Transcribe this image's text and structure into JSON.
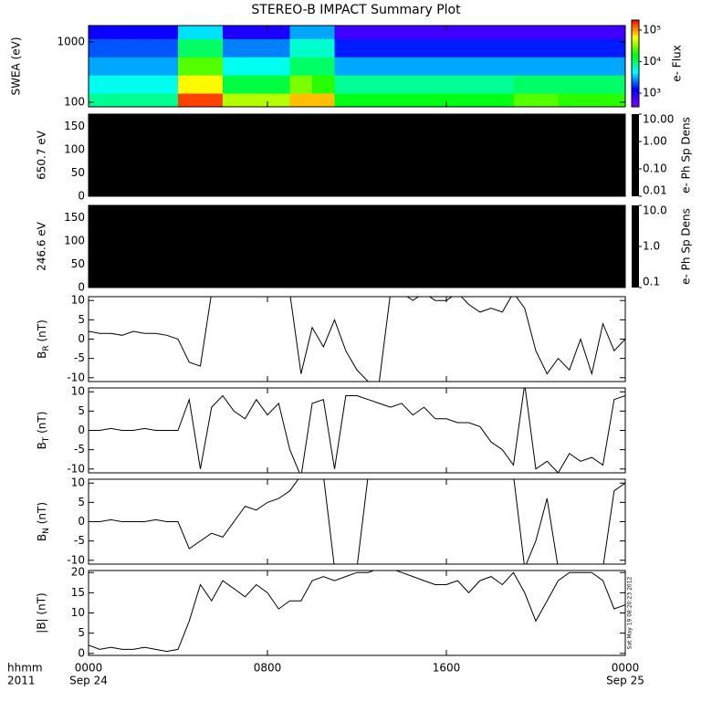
{
  "title": "STEREO-B IMPACT Summary Plot",
  "timestamp": "Sat May 19 08:20:23 2012",
  "x_axis": {
    "xlim": [
      0,
      24
    ],
    "xticks": [
      {
        "value": 0,
        "label": "0000"
      },
      {
        "value": 8,
        "label": "0800"
      },
      {
        "value": 16,
        "label": "1600"
      },
      {
        "value": 24,
        "label": "0000"
      }
    ],
    "date_labels": [
      "Sep 24",
      "Sep 25"
    ],
    "corner_labels": [
      "hhmm",
      "2011"
    ]
  },
  "chart_data": [
    {
      "type": "heatmap",
      "ylabel": "SWEA (eV)",
      "log": true,
      "ylim": [
        84,
        1870
      ],
      "yticks": [
        100,
        1000
      ],
      "x": [
        0,
        1,
        2,
        3,
        4,
        5,
        6,
        7,
        8,
        9,
        10,
        11,
        12,
        13,
        14,
        15,
        16,
        17,
        18,
        19,
        20,
        21,
        22,
        23
      ],
      "y": [
        100,
        200,
        400,
        800,
        1600
      ],
      "z": [
        [
          8000,
          8000,
          8000,
          8000,
          150000,
          150000,
          40000,
          40000,
          40000,
          80000,
          80000,
          15000,
          15000,
          15000,
          15000,
          15000,
          15000,
          15000,
          15000,
          25000,
          25000,
          20000,
          20000,
          20000
        ],
        [
          5000,
          5000,
          5000,
          5000,
          60000,
          60000,
          12000,
          12000,
          12000,
          30000,
          20000,
          8000,
          8000,
          8000,
          8000,
          8000,
          8000,
          8000,
          8000,
          10000,
          10000,
          10000,
          10000,
          10000
        ],
        [
          3000,
          3000,
          3000,
          3000,
          25000,
          25000,
          5000,
          5000,
          5000,
          10000,
          10000,
          3000,
          3000,
          3000,
          3000,
          3000,
          3000,
          3000,
          3000,
          3000,
          3000,
          3000,
          3000,
          3000
        ],
        [
          2000,
          2000,
          2000,
          2000,
          10000,
          10000,
          2500,
          2500,
          2500,
          6000,
          6000,
          1500,
          1500,
          1500,
          1500,
          1500,
          1500,
          1500,
          1500,
          1500,
          1500,
          1500,
          1500,
          1500
        ],
        [
          1200,
          1200,
          1200,
          1200,
          4000,
          4000,
          1000,
          1000,
          1000,
          3000,
          3000,
          700,
          700,
          700,
          700,
          700,
          700,
          700,
          700,
          700,
          700,
          700,
          700,
          700
        ]
      ],
      "colorbar": {
        "label": "e- Flux",
        "log": true,
        "clim": [
          370,
          207000
        ],
        "ticks": [
          {
            "value": 1000,
            "label": "10³"
          },
          {
            "value": 10000,
            "label": "10⁴"
          },
          {
            "value": 100000,
            "label": "10⁵"
          }
        ],
        "colormap": [
          "#8000ff",
          "#0000ff",
          "#00ffff",
          "#00ff00",
          "#ffff00",
          "#ff0000"
        ]
      }
    },
    {
      "type": "heatmap",
      "ylabel": "650.7 eV",
      "ylim": [
        0,
        176
      ],
      "yticks": [
        0,
        50,
        100,
        150
      ],
      "color": "#000000",
      "colorbar": {
        "label": "e- Ph Sp Dens",
        "log": true,
        "clim": [
          0.01,
          10
        ],
        "color": "#000000",
        "ticks": [
          {
            "value": 10,
            "label": "10.00"
          },
          {
            "value": 1,
            "label": "1.00"
          },
          {
            "value": 0.1,
            "label": "0.10"
          },
          {
            "value": 0.01,
            "label": "0.01"
          }
        ]
      }
    },
    {
      "type": "heatmap",
      "ylabel": "246.6 eV",
      "ylim": [
        0,
        176
      ],
      "yticks": [
        0,
        50,
        100,
        150
      ],
      "color": "#000000",
      "colorbar": {
        "label": "e- Ph Sp Dens",
        "log": true,
        "clim": [
          0.1,
          10
        ],
        "color": "#000000",
        "ticks": [
          {
            "value": 10,
            "label": "10.0"
          },
          {
            "value": 1,
            "label": "1.0"
          },
          {
            "value": 0.1,
            "label": "0.1"
          }
        ]
      }
    },
    {
      "type": "line",
      "ylabel": {
        "text": "B",
        "sub": "R",
        "unit": " (nT)"
      },
      "ylim": [
        -11,
        11
      ],
      "yticks": [
        -10,
        -5,
        0,
        5,
        10
      ],
      "color": "#000000",
      "x": [
        0,
        0.5,
        1,
        1.5,
        2,
        2.5,
        3,
        3.5,
        4,
        4.5,
        5,
        5.5,
        6,
        6.5,
        7,
        7.5,
        8,
        8.5,
        9,
        9.5,
        10,
        10.5,
        11,
        11.5,
        12,
        12.5,
        13,
        13.5,
        14,
        14.5,
        15,
        15.5,
        16,
        16.5,
        17,
        17.5,
        18,
        18.5,
        19,
        19.5,
        20,
        20.5,
        21,
        21.5,
        22,
        22.5,
        23,
        23.5,
        24
      ],
      "values": [
        2,
        1.5,
        1.5,
        1,
        2,
        1.5,
        1.5,
        1,
        0,
        -6,
        -7,
        12,
        12,
        12,
        12,
        12,
        12,
        12,
        12,
        -9,
        3,
        -2,
        5,
        -3,
        -8,
        -11,
        -11,
        12,
        12,
        10,
        12,
        10,
        10,
        12,
        9,
        7,
        8,
        7,
        12,
        8,
        -3,
        -9,
        -5,
        -8,
        0,
        -9,
        4,
        -3,
        0
      ]
    },
    {
      "type": "line",
      "ylabel": {
        "text": "B",
        "sub": "T",
        "unit": " (nT)"
      },
      "ylim": [
        -11,
        11
      ],
      "yticks": [
        -10,
        -5,
        0,
        5,
        10
      ],
      "color": "#000000",
      "x": [
        0,
        0.5,
        1,
        1.5,
        2,
        2.5,
        3,
        3.5,
        4,
        4.5,
        5,
        5.5,
        6,
        6.5,
        7,
        7.5,
        8,
        8.5,
        9,
        9.5,
        10,
        10.5,
        11,
        11.5,
        12,
        12.5,
        13,
        13.5,
        14,
        14.5,
        15,
        15.5,
        16,
        16.5,
        17,
        17.5,
        18,
        18.5,
        19,
        19.5,
        20,
        20.5,
        21,
        21.5,
        22,
        22.5,
        23,
        23.5,
        24
      ],
      "values": [
        0,
        0,
        0.5,
        0,
        0,
        0.5,
        0,
        0,
        0,
        8,
        -10,
        6,
        9,
        5,
        3,
        8,
        4,
        7,
        -5,
        -12,
        7,
        8,
        -10,
        9,
        9,
        8,
        7,
        6,
        7,
        4,
        6,
        3,
        3,
        2,
        2,
        1,
        -3,
        -5,
        -9,
        12,
        -10,
        -8,
        -11,
        -6,
        -8,
        -7,
        -9,
        8,
        9
      ]
    },
    {
      "type": "line",
      "ylabel": {
        "text": "B",
        "sub": "N",
        "unit": " (nT)"
      },
      "ylim": [
        -11,
        11
      ],
      "yticks": [
        -10,
        -5,
        0,
        5,
        10
      ],
      "color": "#000000",
      "x": [
        0,
        0.5,
        1,
        1.5,
        2,
        2.5,
        3,
        3.5,
        4,
        4.5,
        5,
        5.5,
        6,
        6.5,
        7,
        7.5,
        8,
        8.5,
        9,
        9.5,
        10,
        10.5,
        11,
        11.5,
        12,
        12.5,
        13,
        13.5,
        14,
        14.5,
        15,
        15.5,
        16,
        16.5,
        17,
        17.5,
        18,
        18.5,
        19,
        19.5,
        20,
        20.5,
        21,
        21.5,
        22,
        22.5,
        23,
        23.5,
        24
      ],
      "values": [
        0,
        0,
        0.5,
        0,
        0,
        0,
        0.5,
        0,
        0,
        -7,
        -5,
        -3,
        -4,
        0,
        4,
        3,
        5,
        6,
        8,
        12,
        12,
        12,
        -12,
        -12,
        -12,
        12,
        12,
        12,
        12,
        12,
        12,
        12,
        12,
        12,
        12,
        12,
        12,
        12,
        12,
        -12,
        -5,
        6,
        -12,
        -12,
        -12,
        -12,
        -12,
        8,
        10
      ]
    },
    {
      "type": "line",
      "ylabel": "|B| (nT)",
      "ylim": [
        -0.5,
        20.5
      ],
      "yticks": [
        0,
        5,
        10,
        15,
        20
      ],
      "color": "#000000",
      "x": [
        0,
        0.5,
        1,
        1.5,
        2,
        2.5,
        3,
        3.5,
        4,
        4.5,
        5,
        5.5,
        6,
        6.5,
        7,
        7.5,
        8,
        8.5,
        9,
        9.5,
        10,
        10.5,
        11,
        11.5,
        12,
        12.5,
        13,
        13.5,
        14,
        14.5,
        15,
        15.5,
        16,
        16.5,
        17,
        17.5,
        18,
        18.5,
        19,
        19.5,
        20,
        20.5,
        21,
        21.5,
        22,
        22.5,
        23,
        23.5,
        24
      ],
      "values": [
        2,
        1,
        1.5,
        1,
        1,
        1.5,
        1,
        0.5,
        1,
        8,
        17,
        13,
        18,
        16,
        14,
        17,
        15,
        11,
        13,
        13,
        18,
        19,
        18,
        19,
        20,
        20,
        21,
        21,
        20,
        19,
        18,
        17,
        17,
        18,
        15,
        18,
        19,
        17,
        20,
        15,
        8,
        13,
        18,
        20,
        20,
        20,
        18,
        11,
        12
      ]
    }
  ]
}
